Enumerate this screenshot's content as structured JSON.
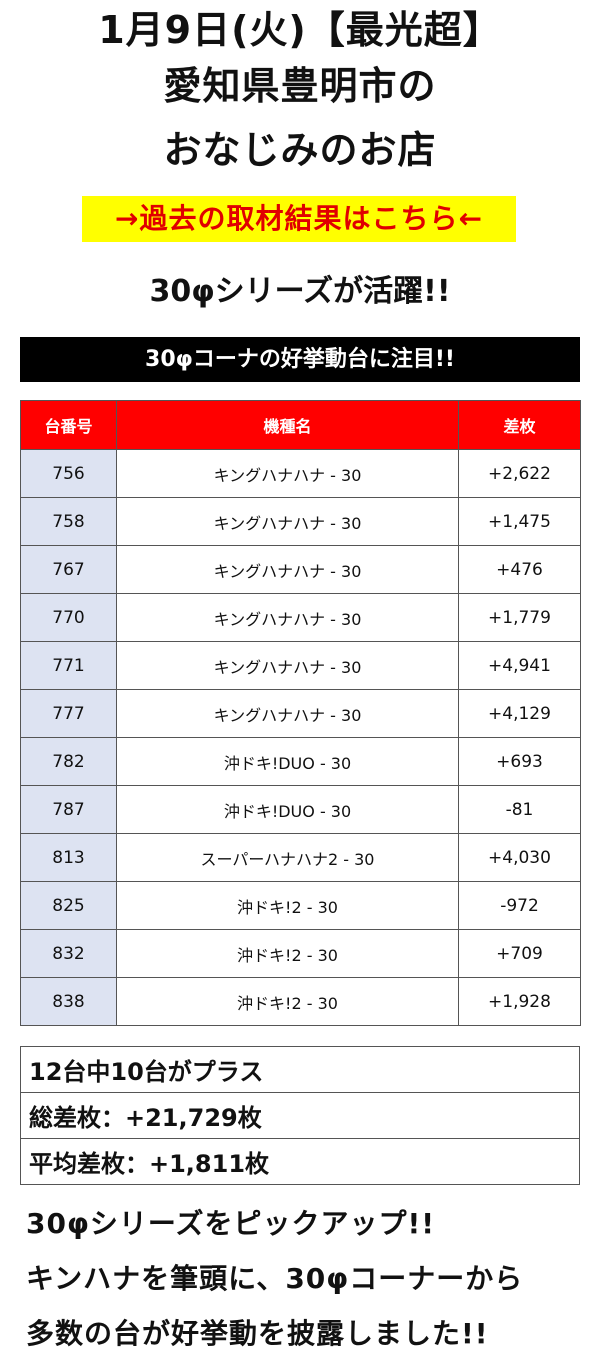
{
  "header": {
    "line1": "1月9日(火)【最光超】",
    "line2": "愛知県豊明市の",
    "line3": "おなじみのお店"
  },
  "banner": {
    "text": "→過去の取材結果はこちら←"
  },
  "subhead": "30φシリーズが活躍!!",
  "section_bar": "30φコーナの好挙動台に注目!!",
  "table": {
    "headers": [
      "台番号",
      "機種名",
      "差枚"
    ],
    "rows": [
      {
        "num": "756",
        "name": "キングハナハナ - 30",
        "diff": "+2,622"
      },
      {
        "num": "758",
        "name": "キングハナハナ - 30",
        "diff": "+1,475"
      },
      {
        "num": "767",
        "name": "キングハナハナ - 30",
        "diff": "+476"
      },
      {
        "num": "770",
        "name": "キングハナハナ - 30",
        "diff": "+1,779"
      },
      {
        "num": "771",
        "name": "キングハナハナ - 30",
        "diff": "+4,941"
      },
      {
        "num": "777",
        "name": "キングハナハナ - 30",
        "diff": "+4,129"
      },
      {
        "num": "782",
        "name": "沖ドキ!DUO - 30",
        "diff": "+693"
      },
      {
        "num": "787",
        "name": "沖ドキ!DUO - 30",
        "diff": "-81"
      },
      {
        "num": "813",
        "name": "スーパーハナハナ2 - 30",
        "diff": "+4,030"
      },
      {
        "num": "825",
        "name": "沖ドキ!2 - 30",
        "diff": "-972"
      },
      {
        "num": "832",
        "name": "沖ドキ!2 - 30",
        "diff": "+709"
      },
      {
        "num": "838",
        "name": "沖ドキ!2 - 30",
        "diff": "+1,928"
      }
    ]
  },
  "summary": {
    "line1": "12台中10台がプラス",
    "line2": "総差枚：+21,729枚",
    "line3": "平均差枚：+1,811枚"
  },
  "footer": {
    "line1": "30φシリーズをピックアップ!!",
    "line2": "キンハナを筆頭に、30φコーナーから",
    "line3": "多数の台が好挙動を披露しました!!"
  }
}
